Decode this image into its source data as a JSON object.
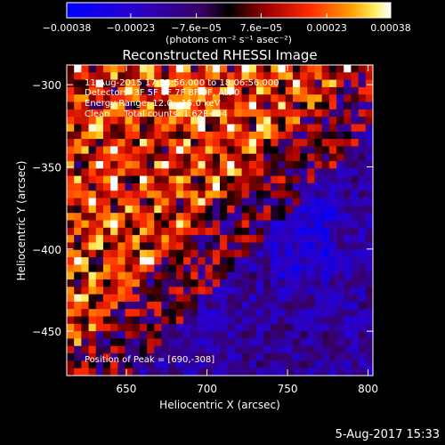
{
  "chart_data": {
    "type": "heatmap",
    "title": "Reconstructed RHESSI Image",
    "xlabel": "Heliocentric X (arcsec)",
    "ylabel": "Heliocentric Y (arcsec)",
    "xlim": [
      613,
      803
    ],
    "ylim": [
      -477,
      -288
    ],
    "x_ticks": [
      650,
      700,
      750,
      800
    ],
    "x_tick_labels": [
      "650",
      "700",
      "750",
      "800"
    ],
    "y_ticks": [
      -300,
      -350,
      -400,
      -450
    ],
    "y_tick_labels": [
      "−300",
      "−350",
      "−400",
      "−450"
    ],
    "colorbar": {
      "range": [
        -0.00038,
        0.00038
      ],
      "ticks": [
        -0.00038,
        -0.00023,
        -7.6e-05,
        7.6e-05,
        0.00023,
        0.00038
      ],
      "tick_labels": [
        "−0.00038",
        "−0.00023",
        "−7.6e−05",
        "7.6e−05",
        "0.00023",
        "0.00038"
      ],
      "units_label": "(photons cm⁻² s⁻¹ asec⁻²)"
    },
    "annotations": {
      "time_range": "11-Aug-2015 17:58:56.000 to 18:06:56.000",
      "detectors": "Detectors: 3F 5F 6F 7F 8F 9F, Att 0",
      "energy_range": "Energy Range: 12.0 - 15.0 keV",
      "method_counts": "Clean     Total counts: 1.62E+04",
      "peak_position": "Position of Peak = [690,-308]"
    },
    "peak": [
      690,
      -308
    ],
    "grid": false,
    "legend": "none"
  },
  "footer": {
    "timestamp": "5-Aug-2017 15:33"
  },
  "colors": {
    "background": "#000000",
    "text": "#ffffff",
    "colormap_low": "#0000ff",
    "colormap_mid": "#000000",
    "colormap_high": "#ffffff"
  }
}
